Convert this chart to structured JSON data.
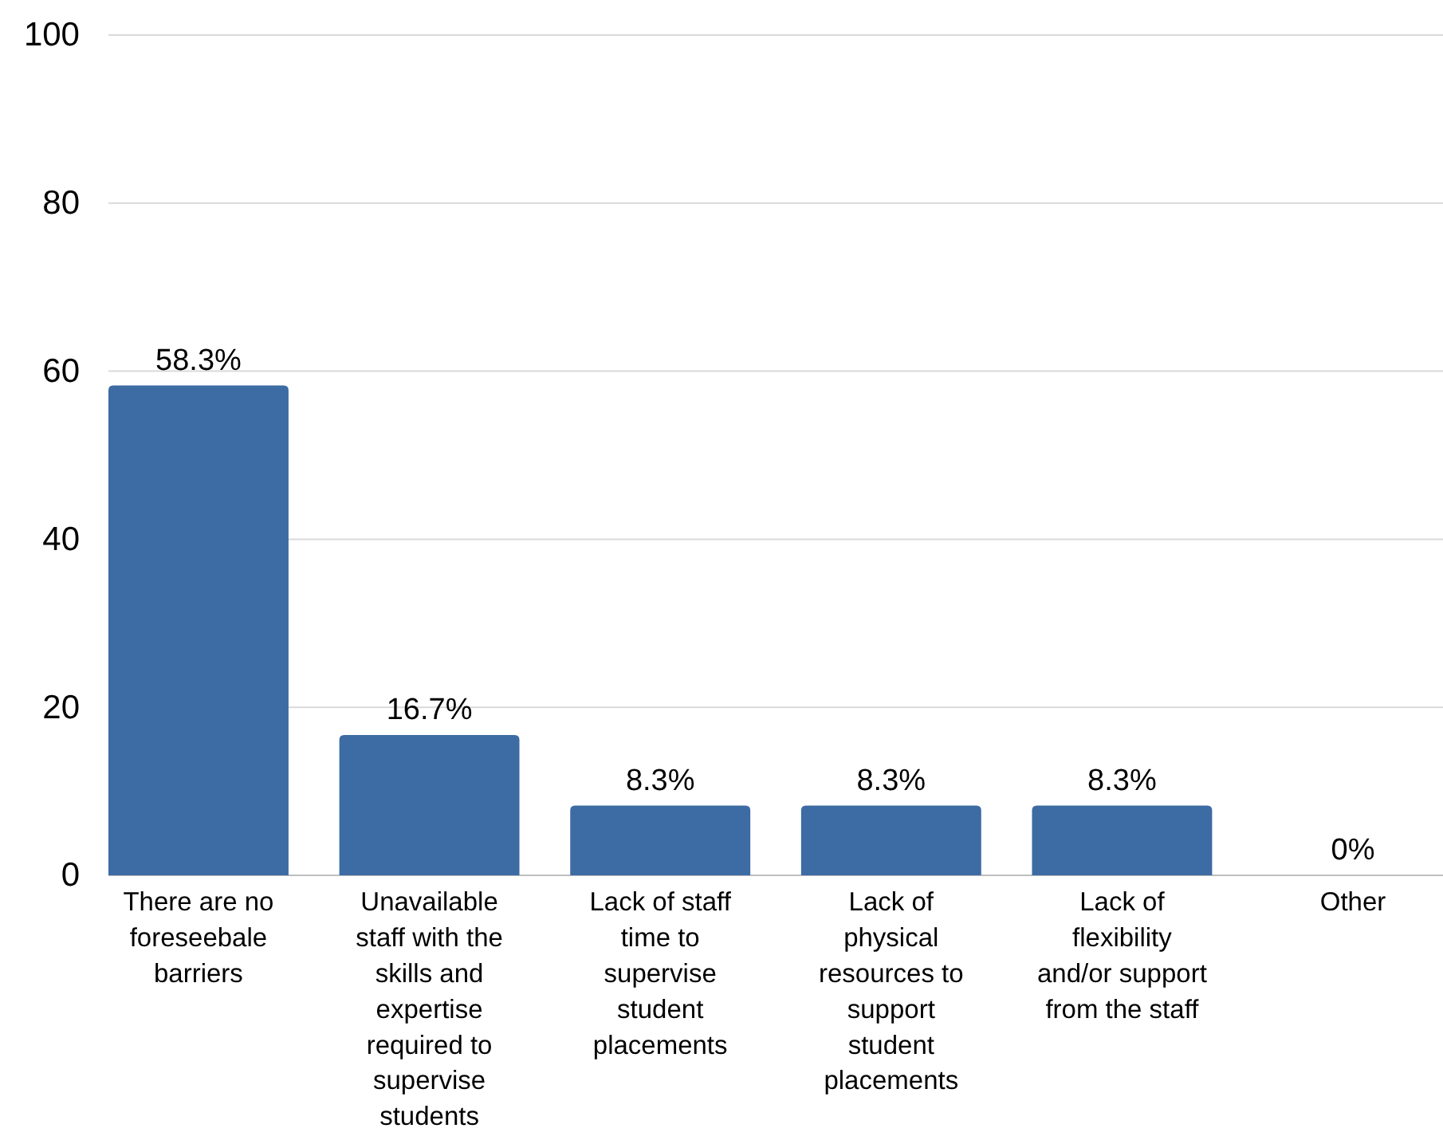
{
  "chart_data": {
    "type": "bar",
    "categories": [
      "There are no foreseebale barriers",
      "Unavailable staff with the skills and expertise required to supervise students",
      "Lack of staff time to supervise student placements",
      "Lack of physical resources to support student placements",
      "Lack of flexibility and/or support from the staff",
      "Other"
    ],
    "values": [
      58.3,
      16.7,
      8.3,
      8.3,
      8.3,
      0
    ],
    "value_labels": [
      "58.3%",
      "16.7%",
      "8.3%",
      "8.3%",
      "8.3%",
      "0%"
    ],
    "color": "#3d6ba3",
    "ylim": [
      0,
      100
    ],
    "yticks": [
      0,
      20,
      40,
      60,
      80,
      100
    ],
    "grid": "y"
  }
}
